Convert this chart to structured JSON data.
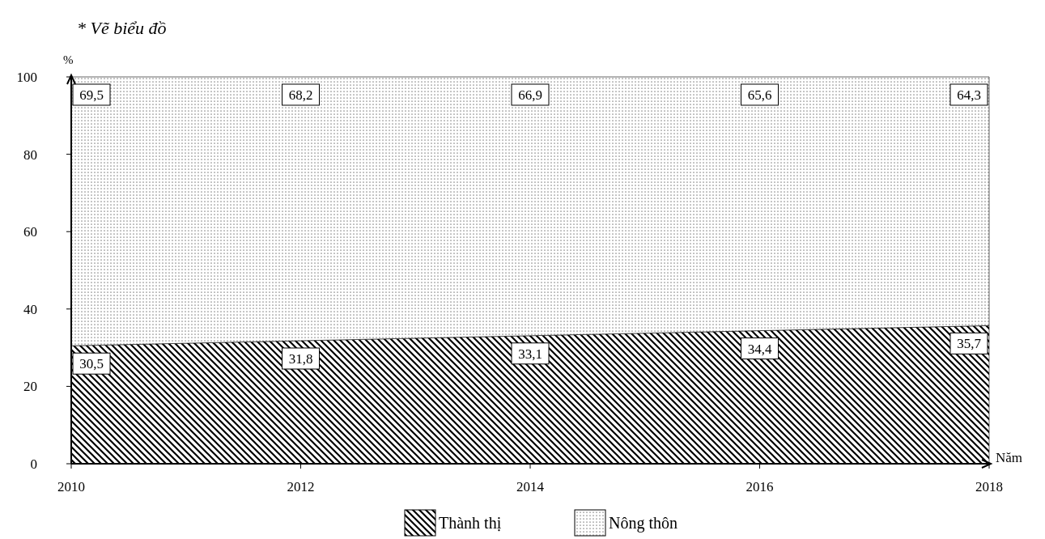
{
  "chart_data": {
    "type": "area",
    "title": "* Vẽ biểu đồ",
    "xlabel": "Năm",
    "ylabel": "%",
    "stacked": true,
    "x": [
      2010,
      2012,
      2014,
      2016,
      2018
    ],
    "xlim": [
      2010,
      2018
    ],
    "xticks": [
      2010,
      2012,
      2014,
      2016,
      2018
    ],
    "ylim": [
      0,
      100
    ],
    "yticks": [
      0,
      20,
      40,
      60,
      80,
      100
    ],
    "grid": false,
    "legend": "bottom",
    "series": [
      {
        "name": "Thành thị",
        "color": "#000000",
        "values": [
          30.5,
          31.8,
          33.1,
          34.4,
          35.7
        ],
        "value_labels": [
          "30,5",
          "31,8",
          "33,1",
          "34,4",
          "35,7"
        ]
      },
      {
        "name": "Nông thôn",
        "color": "#000000",
        "values": [
          69.5,
          68.2,
          66.9,
          65.6,
          64.3
        ],
        "value_labels": [
          "69,5",
          "68,2",
          "66,9",
          "65,6",
          "64,3"
        ]
      }
    ]
  }
}
